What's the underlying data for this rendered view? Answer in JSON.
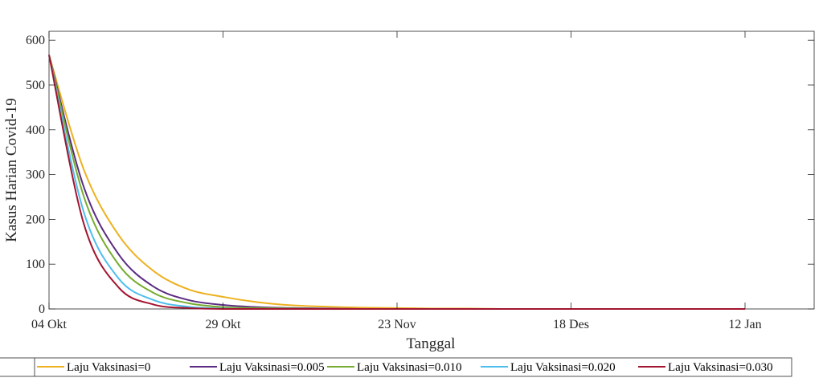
{
  "chart_data": {
    "type": "line",
    "title": "",
    "xlabel": "Tanggal",
    "ylabel": "Kasus Harian Covid-19",
    "ylim": [
      0,
      620
    ],
    "yticks": [
      0,
      100,
      200,
      300,
      400,
      500,
      600
    ],
    "x_axis_type": "date",
    "x_ticks": [
      {
        "date": "04 Okt",
        "label": "04 Okt"
      },
      {
        "date": "29 Okt",
        "label": "29 Okt"
      },
      {
        "date": "23 Nov",
        "label": "23 Nov"
      },
      {
        "date": "18 Des",
        "label": "18 Des"
      },
      {
        "date": "12 Jan",
        "label": "12 Jan"
      }
    ],
    "x": [
      "04 Okt",
      "09 Okt",
      "14 Okt",
      "19 Okt",
      "24 Okt",
      "29 Okt",
      "03 Nov",
      "08 Nov",
      "13 Nov",
      "18 Nov",
      "23 Nov",
      "28 Nov",
      "03 Des",
      "08 Des",
      "13 Des",
      "18 Des",
      "23 Des",
      "28 Des",
      "02 Jan",
      "07 Jan",
      "12 Jan"
    ],
    "series": [
      {
        "name": "Laju Vaksinasi=0",
        "color": "#EDB120",
        "values": [
          567,
          311,
          165,
          85,
          44,
          27,
          15,
          8,
          5,
          3,
          2,
          1,
          1,
          0,
          0,
          0,
          0,
          0,
          0,
          0,
          0
        ]
      },
      {
        "name": "Laju Vaksinasi=0.005",
        "color": "#5B2C82",
        "values": [
          567,
          272,
          122,
          50,
          20,
          9,
          4,
          2,
          1,
          0,
          0,
          0,
          0,
          0,
          0,
          0,
          0,
          0,
          0,
          0,
          0
        ]
      },
      {
        "name": "Laju Vaksinasi=0.010",
        "color": "#77AC30",
        "values": [
          567,
          251,
          99,
          36,
          13,
          4,
          2,
          1,
          0,
          0,
          0,
          0,
          0,
          0,
          0,
          0,
          0,
          0,
          0,
          0,
          0
        ]
      },
      {
        "name": "Laju Vaksinasi=0.020",
        "color": "#4DBEEE",
        "values": [
          567,
          216,
          68,
          20,
          5,
          1,
          0,
          0,
          0,
          0,
          0,
          0,
          0,
          0,
          0,
          0,
          0,
          0,
          0,
          0,
          0
        ]
      },
      {
        "name": "Laju Vaksinasi=0.030",
        "color": "#A2142F",
        "values": [
          567,
          190,
          48,
          10,
          2,
          0,
          0,
          0,
          0,
          0,
          0,
          0,
          0,
          0,
          0,
          0,
          0,
          0,
          0,
          0,
          0
        ]
      }
    ],
    "grid": false,
    "legend": "bottom"
  }
}
